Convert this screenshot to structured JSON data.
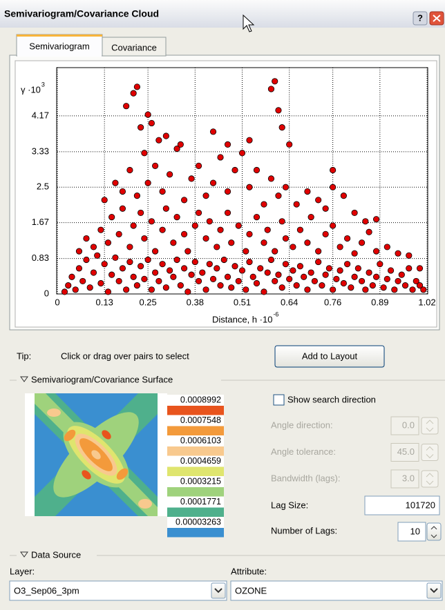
{
  "window": {
    "title": "Semivariogram/Covariance Cloud",
    "help_button": "?"
  },
  "tabs": [
    "Semivariogram",
    "Covariance"
  ],
  "active_tab": 0,
  "chart_data": {
    "type": "scatter",
    "y_label": "γ ·10",
    "y_label_exponent": "3",
    "x_label": "Distance, h ·10",
    "x_label_exponent": "-6",
    "color": "#e00000",
    "xlim": [
      0,
      1.02
    ],
    "ylim": [
      0,
      5.3
    ],
    "xticks": [
      0,
      0.13,
      0.25,
      0.38,
      0.51,
      0.64,
      0.76,
      0.89,
      1.02
    ],
    "yticks": [
      0,
      0.83,
      1.67,
      2.5,
      3.33,
      4.17
    ],
    "grid": true,
    "x": [
      0.02,
      0.03,
      0.04,
      0.05,
      0.06,
      0.07,
      0.08,
      0.09,
      0.1,
      0.11,
      0.12,
      0.13,
      0.14,
      0.15,
      0.16,
      0.17,
      0.18,
      0.19,
      0.2,
      0.21,
      0.22,
      0.23,
      0.24,
      0.25,
      0.26,
      0.27,
      0.28,
      0.29,
      0.3,
      0.31,
      0.32,
      0.33,
      0.34,
      0.35,
      0.36,
      0.37,
      0.38,
      0.39,
      0.4,
      0.41,
      0.42,
      0.43,
      0.44,
      0.45,
      0.46,
      0.47,
      0.48,
      0.49,
      0.5,
      0.51,
      0.52,
      0.53,
      0.54,
      0.55,
      0.56,
      0.57,
      0.58,
      0.59,
      0.6,
      0.61,
      0.62,
      0.63,
      0.64,
      0.65,
      0.66,
      0.67,
      0.68,
      0.69,
      0.7,
      0.71,
      0.72,
      0.73,
      0.74,
      0.75,
      0.76,
      0.77,
      0.78,
      0.79,
      0.8,
      0.81,
      0.82,
      0.83,
      0.84,
      0.85,
      0.86,
      0.87,
      0.88,
      0.89,
      0.9,
      0.91,
      0.92,
      0.93,
      0.94,
      0.95,
      0.96,
      0.97,
      0.98,
      0.99,
      1.0,
      1.01,
      0.06,
      0.08,
      0.1,
      0.12,
      0.14,
      0.15,
      0.17,
      0.18,
      0.2,
      0.21,
      0.23,
      0.24,
      0.26,
      0.27,
      0.29,
      0.3,
      0.32,
      0.33,
      0.35,
      0.36,
      0.38,
      0.39,
      0.41,
      0.42,
      0.44,
      0.45,
      0.47,
      0.48,
      0.5,
      0.52,
      0.53,
      0.55,
      0.57,
      0.58,
      0.6,
      0.62,
      0.63,
      0.65,
      0.67,
      0.69,
      0.7,
      0.72,
      0.74,
      0.76,
      0.78,
      0.8,
      0.82,
      0.84,
      0.86,
      0.88,
      0.91,
      0.94,
      0.97,
      1.0,
      0.13,
      0.16,
      0.18,
      0.2,
      0.22,
      0.24,
      0.25,
      0.27,
      0.29,
      0.31,
      0.33,
      0.35,
      0.37,
      0.39,
      0.41,
      0.43,
      0.45,
      0.47,
      0.49,
      0.51,
      0.53,
      0.55,
      0.57,
      0.59,
      0.61,
      0.63,
      0.66,
      0.69,
      0.72,
      0.74,
      0.76,
      0.79,
      0.82,
      0.85,
      0.88,
      0.19,
      0.21,
      0.22,
      0.23,
      0.25,
      0.26,
      0.28,
      0.3,
      0.34,
      0.43,
      0.47,
      0.53,
      0.59,
      0.6,
      0.61,
      0.62,
      0.64,
      0.76
    ],
    "values": [
      0.05,
      0.2,
      0.4,
      0.1,
      0.6,
      0.3,
      0.8,
      0.15,
      0.5,
      0.9,
      0.25,
      0.7,
      0.05,
      0.45,
      0.85,
      0.3,
      0.6,
      0.1,
      0.75,
      0.4,
      0.2,
      0.65,
      0.35,
      0.8,
      0.1,
      0.5,
      0.3,
      0.7,
      0.15,
      0.55,
      0.4,
      0.8,
      0.2,
      0.6,
      0.05,
      0.45,
      0.75,
      0.3,
      0.5,
      0.1,
      0.7,
      0.35,
      0.6,
      0.2,
      0.8,
      0.4,
      0.15,
      0.65,
      0.3,
      0.55,
      0.1,
      0.75,
      0.4,
      0.25,
      0.6,
      0.05,
      0.5,
      0.8,
      0.3,
      0.45,
      0.15,
      0.7,
      0.35,
      0.55,
      0.2,
      0.65,
      0.4,
      0.1,
      0.5,
      0.3,
      0.75,
      0.2,
      0.45,
      0.6,
      0.1,
      0.35,
      0.55,
      0.25,
      0.7,
      0.15,
      0.4,
      0.6,
      0.3,
      0.1,
      0.5,
      0.2,
      0.4,
      0.7,
      0.15,
      0.35,
      0.55,
      0.1,
      0.3,
      0.45,
      0.2,
      0.6,
      0.1,
      0.3,
      0.2,
      0.1,
      1.0,
      1.3,
      1.1,
      1.5,
      1.2,
      1.8,
      1.4,
      2.0,
      1.1,
      1.6,
      1.9,
      1.3,
      1.7,
      1.0,
      1.5,
      2.0,
      1.2,
      1.8,
      1.4,
      1.0,
      1.6,
      1.9,
      1.3,
      1.7,
      1.1,
      1.5,
      1.9,
      1.2,
      1.6,
      1.0,
      1.4,
      1.8,
      1.2,
      1.5,
      1.0,
      1.7,
      1.3,
      1.1,
      1.5,
      1.2,
      1.8,
      1.0,
      1.4,
      1.6,
      1.1,
      1.3,
      0.95,
      1.2,
      1.45,
      1.0,
      1.1,
      0.95,
      0.9,
      0.6,
      2.2,
      2.6,
      2.4,
      2.9,
      2.3,
      3.3,
      2.6,
      3.0,
      2.4,
      2.8,
      3.4,
      2.2,
      2.7,
      3.0,
      2.3,
      2.6,
      3.2,
      2.4,
      2.9,
      3.3,
      2.5,
      2.9,
      2.1,
      2.7,
      2.3,
      2.5,
      2.1,
      2.4,
      2.2,
      2.0,
      2.5,
      2.3,
      1.9,
      1.7,
      1.75,
      4.4,
      4.7,
      4.85,
      3.9,
      4.2,
      4.0,
      3.6,
      3.7,
      3.5,
      3.8,
      3.5,
      3.6,
      4.8,
      4.98,
      4.3,
      3.9,
      3.5,
      2.9
    ]
  },
  "tip": {
    "label": "Tip:",
    "text": "Click or drag over pairs to select"
  },
  "add_to_layout": "Add to Layout",
  "surface": {
    "heading": "Semivariogram/Covariance Surface",
    "legend": [
      {
        "label": "0.0008992",
        "color": "#e8541d"
      },
      {
        "label": "0.0007548",
        "color": "#f39a3b"
      },
      {
        "label": "0.0006103",
        "color": "#f8c98e"
      },
      {
        "label": "0.0004659",
        "color": "#dfe56e"
      },
      {
        "label": "0.0003215",
        "color": "#9fd27c"
      },
      {
        "label": "0.0001771",
        "color": "#4fb08c"
      },
      {
        "label": "0.00003263",
        "color": "#3a8fd0"
      }
    ]
  },
  "search": {
    "show_direction": {
      "label": "Show search direction",
      "checked": false
    },
    "fields": [
      {
        "label": "Angle direction:",
        "value": "0.0",
        "enabled": false
      },
      {
        "label": "Angle tolerance:",
        "value": "45.0",
        "enabled": false
      },
      {
        "label": "Bandwidth (lags):",
        "value": "3.0",
        "enabled": false
      }
    ]
  },
  "lag_size": {
    "label": "Lag Size:",
    "value": "101720"
  },
  "number_of_lags": {
    "label": "Number of Lags:",
    "value": "10"
  },
  "data_source": {
    "heading": "Data Source",
    "layer": {
      "label": "Layer:",
      "value": "O3_Sep06_3pm"
    },
    "attribute": {
      "label": "Attribute:",
      "value": "OZONE"
    }
  }
}
